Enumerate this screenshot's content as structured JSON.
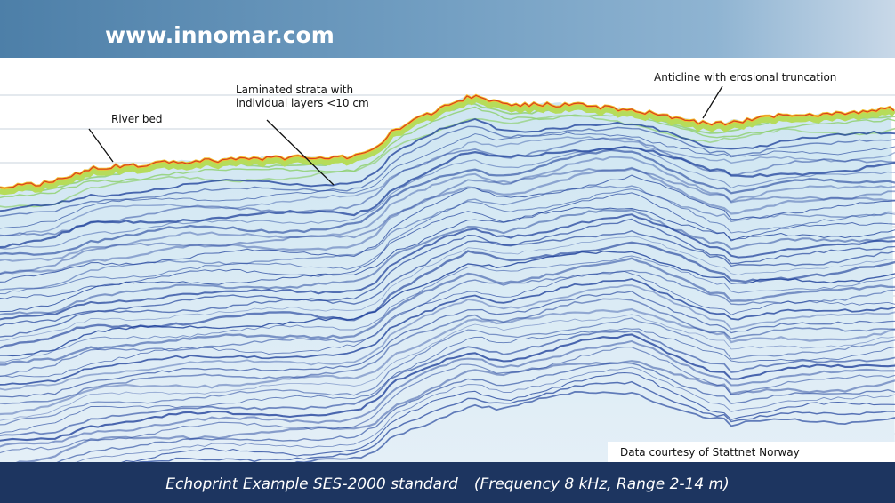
{
  "header": {
    "url": "www.innomar.com"
  },
  "annotations": [
    {
      "lines": [
        "River bed"
      ]
    },
    {
      "lines": [
        "Laminated strata with",
        "individual layers <10 cm"
      ]
    },
    {
      "lines": [
        "Anticline with erosional truncation"
      ]
    }
  ],
  "credit": "Data courtesy of Stattnet Norway",
  "caption": {
    "main": "Echoprint Example SES-2000 standard",
    "detail": "(Frequency 8 kHz, Range 2-14 m)"
  }
}
